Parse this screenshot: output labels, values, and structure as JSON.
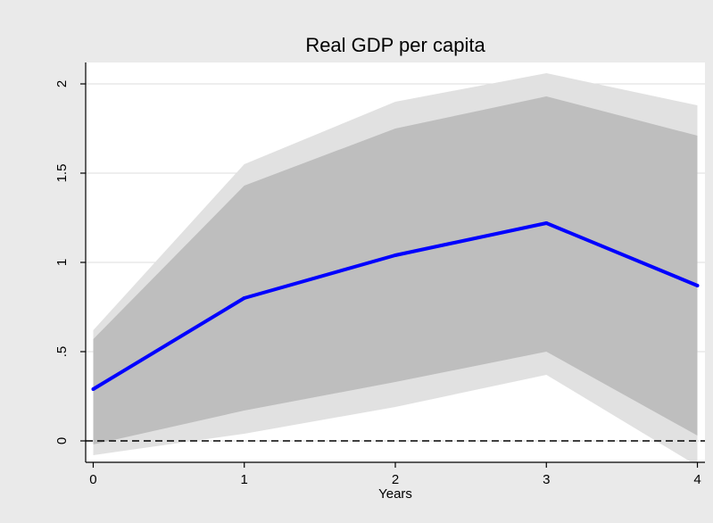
{
  "chart_data": {
    "type": "line",
    "title": "Real GDP per capita",
    "xlabel": "Years",
    "ylabel": "",
    "x": [
      0,
      1,
      2,
      3,
      4
    ],
    "xlim": [
      -0.05,
      4.05
    ],
    "ylim": [
      -0.12,
      2.12
    ],
    "xticks": [
      "0",
      "1",
      "2",
      "3",
      "4"
    ],
    "yticks": [
      {
        "value": 0,
        "label": "0"
      },
      {
        "value": 0.5,
        "label": ".5"
      },
      {
        "value": 1,
        "label": "1"
      },
      {
        "value": 1.5,
        "label": "1.5"
      },
      {
        "value": 2,
        "label": "2"
      }
    ],
    "grid": true,
    "series": [
      {
        "name": "",
        "values": [
          0.29,
          0.8,
          1.04,
          1.22,
          0.87
        ]
      }
    ],
    "band_outer": {
      "lower": [
        -0.08,
        0.04,
        0.19,
        0.37,
        -0.14
      ],
      "upper": [
        0.62,
        1.55,
        1.9,
        2.06,
        1.88
      ]
    },
    "band_inner": {
      "lower": [
        -0.02,
        0.17,
        0.33,
        0.5,
        0.03
      ],
      "upper": [
        0.57,
        1.43,
        1.75,
        1.93,
        1.71
      ]
    },
    "reference_line": {
      "value": 0,
      "style": "dashed"
    },
    "colors": {
      "background": "#eaeaea",
      "plot_background": "#ffffff",
      "grid": "#dddddd",
      "outer_band": "#e1e1e1",
      "inner_band": "#bebebe",
      "line": "#0000ff",
      "reference": "#000000"
    }
  }
}
